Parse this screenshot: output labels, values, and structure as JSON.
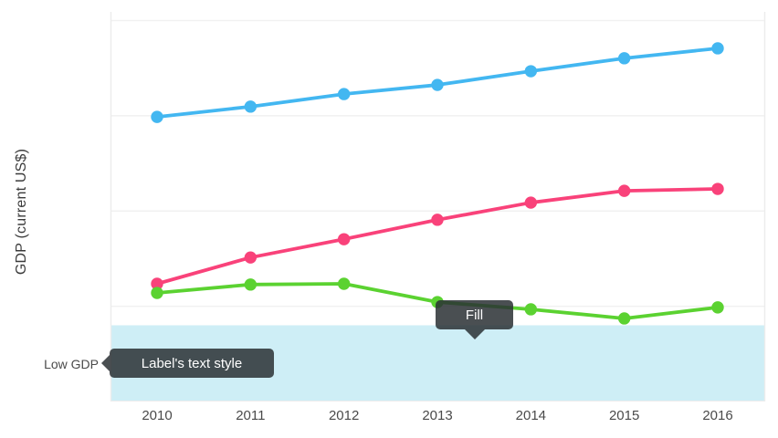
{
  "colors": {
    "blue_series": "#43b7f1",
    "pink_series": "#f9427a",
    "green_series": "#5bd231",
    "band_fill": "#ceeef6",
    "gridline": "#f1f1f1",
    "axis_line": "#ececec",
    "axis_text": "#4a4a4a",
    "tooltip_bg": "rgba(42,48,52,0.85)",
    "tooltip_text": "#ffffff"
  },
  "annotations": {
    "fill_tooltip": "Fill",
    "style_tooltip": "Label's text style",
    "band_label": "Low GDP"
  },
  "chart_data": {
    "type": "line",
    "title": "",
    "xlabel": "",
    "ylabel": "GDP (current US$)",
    "categories": [
      "2010",
      "2011",
      "2012",
      "2013",
      "2014",
      "2015",
      "2016"
    ],
    "series": [
      {
        "name": "blue",
        "color": "#43b7f1",
        "values": [
          74.7,
          77.4,
          80.7,
          83.1,
          86.7,
          90.1,
          92.7
        ]
      },
      {
        "name": "pink",
        "color": "#f9427a",
        "values": [
          30.9,
          37.8,
          42.6,
          47.7,
          52.2,
          55.3,
          55.8
        ]
      },
      {
        "name": "green",
        "color": "#5bd231",
        "values": [
          28.5,
          30.7,
          30.9,
          26.1,
          24.2,
          21.8,
          24.7
        ]
      }
    ],
    "ylim": [
      0,
      102
    ],
    "y_axis_tick_labels": "none",
    "gridlines_at": [
      25,
      50,
      75,
      100
    ],
    "legend": "none",
    "low_band": {
      "label": "Low GDP",
      "from": 0,
      "to": 20,
      "color": "#ceeef6"
    }
  }
}
